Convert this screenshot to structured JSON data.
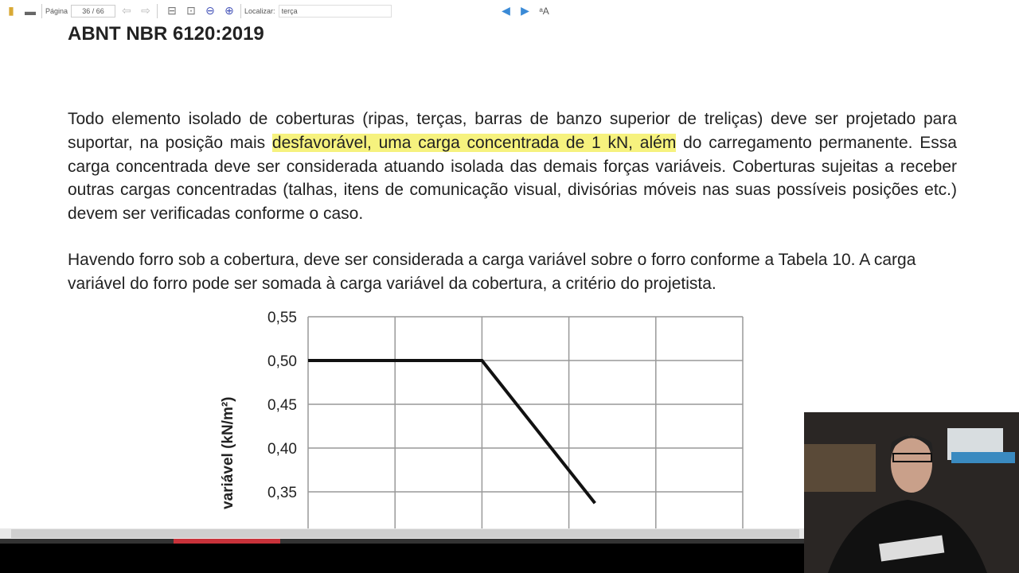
{
  "toolbar": {
    "page_label": "Página",
    "page_value": "36 / 66",
    "find_label": "Localizar:",
    "find_value": "terça",
    "icons": [
      "bookmarks-icon",
      "print-icon",
      "prev-page-icon",
      "next-page-icon",
      "fit-width-icon",
      "fit-page-icon",
      "zoom-out-icon",
      "zoom-in-icon",
      "find-prev-icon",
      "find-next-icon",
      "text-options-icon"
    ]
  },
  "document": {
    "title": "ABNT NBR 6120:2019",
    "p1_before": "Todo elemento isolado de coberturas (ripas, terças, barras de banzo superior de treliças) deve ser projetado para suportar, na posição mais ",
    "p1_highlight": "desfavorável, uma carga concentrada de 1 kN, além",
    "p1_after": " do carregamento permanente. Essa carga concentrada deve ser considerada atuando isolada das demais forças variáveis. Coberturas sujeitas a receber outras cargas concentradas (talhas, itens de comunicação visual, divisórias móveis nas suas possíveis posições etc.) devem ser verificadas conforme o caso.",
    "p2": "Havendo forro sob a cobertura, deve ser considerada a carga variável sobre o forro conforme a Tabela 10. A carga variável do forro pode ser somada à carga variável da cobertura, a critério do projetista.",
    "highlight_color": "#f6f27e"
  },
  "chart_data": {
    "type": "line",
    "ylabel": "variável (kN/m²)",
    "yticks": [
      "0,55",
      "0,50",
      "0,45",
      "0,40",
      "0,35"
    ],
    "ylim": [
      0.33,
      0.55
    ],
    "grid": true,
    "series": [
      {
        "points": [
          [
            0,
            0.5
          ],
          [
            2,
            0.5
          ],
          [
            3.3,
            0.337
          ]
        ]
      }
    ]
  }
}
